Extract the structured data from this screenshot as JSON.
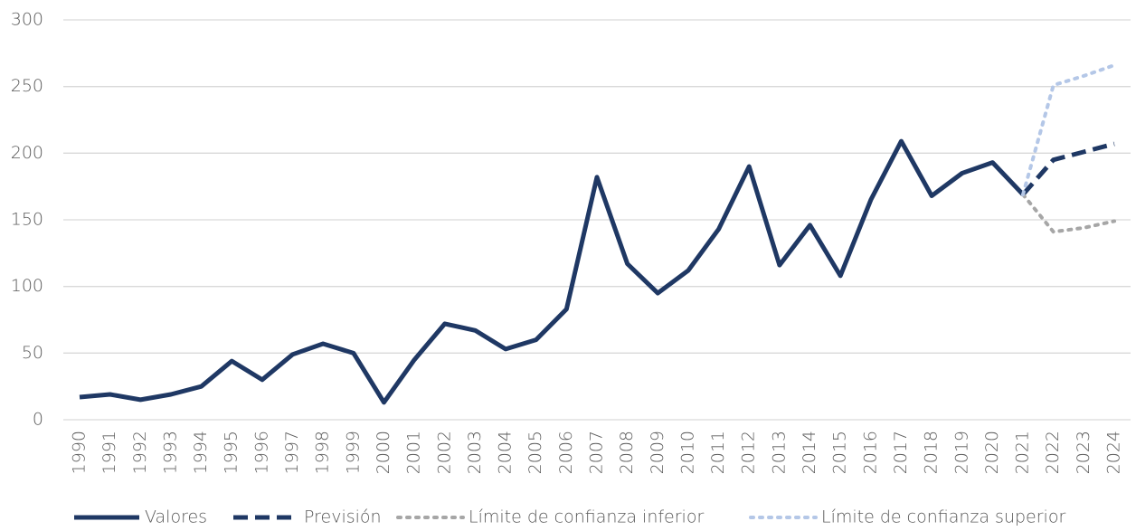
{
  "chart_data": {
    "type": "line",
    "categories": [
      "1990",
      "1991",
      "1992",
      "1993",
      "1994",
      "1995",
      "1996",
      "1997",
      "1998",
      "1999",
      "2000",
      "2001",
      "2002",
      "2003",
      "2004",
      "2005",
      "2006",
      "2007",
      "2008",
      "2009",
      "2010",
      "2011",
      "2012",
      "2013",
      "2014",
      "2015",
      "2016",
      "2017",
      "2018",
      "2019",
      "2020",
      "2021",
      "2022",
      "2023",
      "2024"
    ],
    "series": [
      {
        "name": "Valores",
        "color": "#1f3864",
        "style": "solid",
        "values": [
          17,
          19,
          15,
          19,
          25,
          44,
          30,
          49,
          57,
          50,
          13,
          45,
          72,
          67,
          53,
          60,
          83,
          182,
          117,
          95,
          112,
          143,
          190,
          116,
          146,
          108,
          165,
          209,
          168,
          185,
          193,
          169,
          null,
          null,
          null
        ]
      },
      {
        "name": "Previsión",
        "color": "#1f3864",
        "style": "dashed",
        "values": [
          null,
          null,
          null,
          null,
          null,
          null,
          null,
          null,
          null,
          null,
          null,
          null,
          null,
          null,
          null,
          null,
          null,
          null,
          null,
          null,
          null,
          null,
          null,
          null,
          null,
          null,
          null,
          null,
          null,
          null,
          null,
          169,
          195,
          201,
          207
        ]
      },
      {
        "name": "Límite de confianza inferior",
        "color": "#a6a6a6",
        "style": "dotted",
        "values": [
          null,
          null,
          null,
          null,
          null,
          null,
          null,
          null,
          null,
          null,
          null,
          null,
          null,
          null,
          null,
          null,
          null,
          null,
          null,
          null,
          null,
          null,
          null,
          null,
          null,
          null,
          null,
          null,
          null,
          null,
          null,
          169,
          141,
          144,
          149
        ]
      },
      {
        "name": "Límite de confianza superior",
        "color": "#b4c7e7",
        "style": "dotted",
        "values": [
          null,
          null,
          null,
          null,
          null,
          null,
          null,
          null,
          null,
          null,
          null,
          null,
          null,
          null,
          null,
          null,
          null,
          null,
          null,
          null,
          null,
          null,
          null,
          null,
          null,
          null,
          null,
          null,
          null,
          null,
          null,
          169,
          251,
          258,
          266
        ]
      }
    ],
    "ylim": [
      0,
      300
    ],
    "yticks": [
      0,
      50,
      100,
      150,
      200,
      250,
      300
    ],
    "grid": true,
    "legend": "bottom"
  }
}
